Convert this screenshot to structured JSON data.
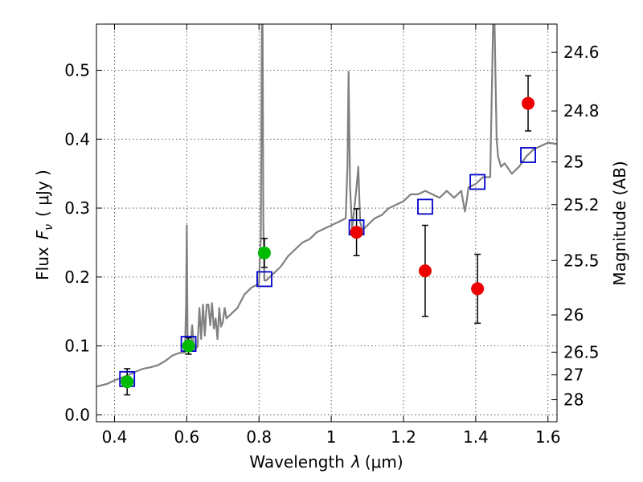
{
  "chart_data": {
    "type": "scatter",
    "xlabel_prefix": "Wavelength",
    "xlabel_symbol": "λ",
    "xlabel_unit": "(μm)",
    "ylabel_prefix": "Flux",
    "ylabel_symbol": "F",
    "ylabel_subscript": "ν",
    "ylabel_unit": "( μJy )",
    "right_ylabel": "Magnitude (AB)",
    "xlim": [
      0.35,
      1.625
    ],
    "ylim": [
      -0.01,
      0.567
    ],
    "x_ticks": [
      0.4,
      0.6,
      0.8,
      1.0,
      1.2,
      1.4,
      1.6
    ],
    "x_tick_labels": [
      "0.4",
      "0.6",
      "0.8",
      "1",
      "1.2",
      "1.4",
      "1.6"
    ],
    "y_ticks": [
      0.0,
      0.1,
      0.2,
      0.3,
      0.4,
      0.5
    ],
    "y_tick_labels": [
      "0.0",
      "0.1",
      "0.2",
      "0.3",
      "0.4",
      "0.5"
    ],
    "right_ticks": [
      {
        "label": "24.6",
        "flux": 0.526
      },
      {
        "label": "24.8",
        "flux": 0.441
      },
      {
        "label": "25",
        "flux": 0.367
      },
      {
        "label": "25.2",
        "flux": 0.305
      },
      {
        "label": "25.5",
        "flux": 0.224
      },
      {
        "label": "26",
        "flux": 0.145
      },
      {
        "label": "26.5",
        "flux": 0.091
      },
      {
        "label": "27",
        "flux": 0.058
      },
      {
        "label": "28",
        "flux": 0.022
      }
    ],
    "grid": true,
    "colors": {
      "model": "#808080",
      "model_photometry": "#0000cc",
      "optical_detections": "#00bb00",
      "nir_detections": "#ee0000",
      "errorbar": "#000000"
    },
    "series": [
      {
        "name": "model_spectrum",
        "kind": "line",
        "x": [
          0.35,
          0.38,
          0.4,
          0.42,
          0.44,
          0.46,
          0.48,
          0.5,
          0.52,
          0.54,
          0.56,
          0.58,
          0.595,
          0.598,
          0.6,
          0.602,
          0.605,
          0.61,
          0.615,
          0.62,
          0.63,
          0.635,
          0.64,
          0.645,
          0.65,
          0.655,
          0.66,
          0.665,
          0.67,
          0.675,
          0.68,
          0.685,
          0.69,
          0.695,
          0.7,
          0.705,
          0.71,
          0.72,
          0.73,
          0.74,
          0.75,
          0.76,
          0.78,
          0.8,
          0.805,
          0.808,
          0.81,
          0.812,
          0.815,
          0.82,
          0.84,
          0.86,
          0.88,
          0.9,
          0.92,
          0.94,
          0.96,
          0.98,
          1.0,
          1.02,
          1.04,
          1.045,
          1.048,
          1.052,
          1.056,
          1.058,
          1.06,
          1.07,
          1.075,
          1.08,
          1.085,
          1.09,
          1.1,
          1.12,
          1.14,
          1.16,
          1.18,
          1.2,
          1.22,
          1.24,
          1.26,
          1.28,
          1.3,
          1.32,
          1.34,
          1.36,
          1.37,
          1.375,
          1.38,
          1.4,
          1.42,
          1.44,
          1.448,
          1.452,
          1.458,
          1.462,
          1.47,
          1.48,
          1.5,
          1.52,
          1.54,
          1.56,
          1.58,
          1.6,
          1.625
        ],
        "y": [
          0.041,
          0.045,
          0.05,
          0.054,
          0.058,
          0.063,
          0.067,
          0.069,
          0.072,
          0.078,
          0.086,
          0.09,
          0.09,
          0.16,
          0.275,
          0.12,
          0.092,
          0.095,
          0.13,
          0.095,
          0.099,
          0.155,
          0.11,
          0.16,
          0.115,
          0.16,
          0.16,
          0.13,
          0.162,
          0.125,
          0.14,
          0.11,
          0.155,
          0.128,
          0.135,
          0.155,
          0.14,
          0.145,
          0.15,
          0.155,
          0.165,
          0.175,
          0.185,
          0.19,
          0.26,
          0.567,
          0.567,
          0.28,
          0.195,
          0.195,
          0.205,
          0.215,
          0.23,
          0.24,
          0.25,
          0.255,
          0.265,
          0.27,
          0.275,
          0.28,
          0.285,
          0.36,
          0.498,
          0.33,
          0.29,
          0.27,
          0.28,
          0.33,
          0.36,
          0.28,
          0.27,
          0.27,
          0.275,
          0.285,
          0.29,
          0.3,
          0.305,
          0.31,
          0.32,
          0.32,
          0.325,
          0.32,
          0.315,
          0.325,
          0.315,
          0.325,
          0.295,
          0.31,
          0.33,
          0.335,
          0.345,
          0.345,
          0.567,
          0.567,
          0.4,
          0.375,
          0.36,
          0.365,
          0.35,
          0.36,
          0.375,
          0.385,
          0.39,
          0.395,
          0.393
        ]
      },
      {
        "name": "model_photometry",
        "kind": "open_square",
        "x": [
          0.435,
          0.605,
          0.815,
          1.07,
          1.26,
          1.405,
          1.545
        ],
        "y": [
          0.052,
          0.103,
          0.197,
          0.272,
          0.302,
          0.338,
          0.377
        ]
      },
      {
        "name": "optical_detections",
        "kind": "filled_circle",
        "x": [
          0.435,
          0.605,
          0.815
        ],
        "y": [
          0.048,
          0.1,
          0.235
        ],
        "yerr": [
          0.019,
          0.012,
          0.021
        ]
      },
      {
        "name": "nir_detections",
        "kind": "filled_circle",
        "x": [
          1.07,
          1.26,
          1.405,
          1.545
        ],
        "y": [
          0.265,
          0.209,
          0.183,
          0.452
        ],
        "yerr": [
          0.034,
          0.066,
          0.05,
          0.04
        ]
      }
    ]
  }
}
